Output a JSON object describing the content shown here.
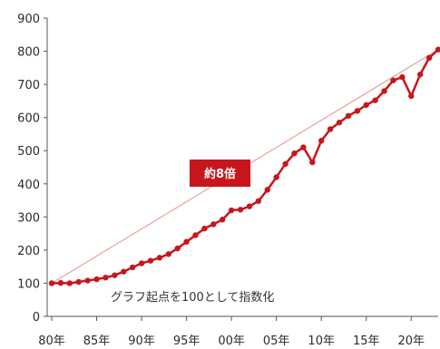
{
  "chart_data": {
    "type": "line",
    "title": "",
    "xlabel": "",
    "ylabel": "",
    "ylim": [
      0,
      900
    ],
    "xlim": [
      1980,
      2023
    ],
    "y_ticks": [
      "0",
      "100",
      "200",
      "300",
      "400",
      "500",
      "600",
      "700",
      "800",
      "900"
    ],
    "x_tick_labels": [
      {
        "year": 1980,
        "label": "80年"
      },
      {
        "year": 1985,
        "label": "85年"
      },
      {
        "year": 1990,
        "label": "90年"
      },
      {
        "year": 1995,
        "label": "95年"
      },
      {
        "year": 2000,
        "label": "00年"
      },
      {
        "year": 2005,
        "label": "05年"
      },
      {
        "year": 2010,
        "label": "10年"
      },
      {
        "year": 2015,
        "label": "15年"
      },
      {
        "year": 2020,
        "label": "20年"
      }
    ],
    "grid": false,
    "series": [
      {
        "color": "#c8161d",
        "x": [
          1980,
          1981,
          1982,
          1983,
          1984,
          1985,
          1986,
          1987,
          1988,
          1989,
          1990,
          1991,
          1992,
          1993,
          1994,
          1995,
          1996,
          1997,
          1998,
          1999,
          2000,
          2001,
          2002,
          2003,
          2004,
          2005,
          2006,
          2007,
          2008,
          2009,
          2010,
          2011,
          2012,
          2013,
          2014,
          2015,
          2016,
          2017,
          2018,
          2019,
          2020,
          2021,
          2022,
          2023
        ],
        "values": [
          100,
          101,
          100,
          104,
          108,
          112,
          117,
          124,
          135,
          148,
          160,
          168,
          177,
          188,
          205,
          225,
          245,
          265,
          278,
          292,
          320,
          322,
          332,
          348,
          382,
          420,
          460,
          492,
          510,
          465,
          530,
          565,
          585,
          605,
          620,
          638,
          652,
          680,
          712,
          722,
          665,
          730,
          780,
          805
        ]
      }
    ],
    "reference_line": {
      "from": {
        "x": 1980,
        "y": 100
      },
      "to": {
        "x": 2023,
        "y": 805
      },
      "color": "#e7a9a4"
    },
    "annotations": {
      "multiple_callout": "約8倍",
      "index_note": "グラフ起点を100として指数化"
    }
  }
}
